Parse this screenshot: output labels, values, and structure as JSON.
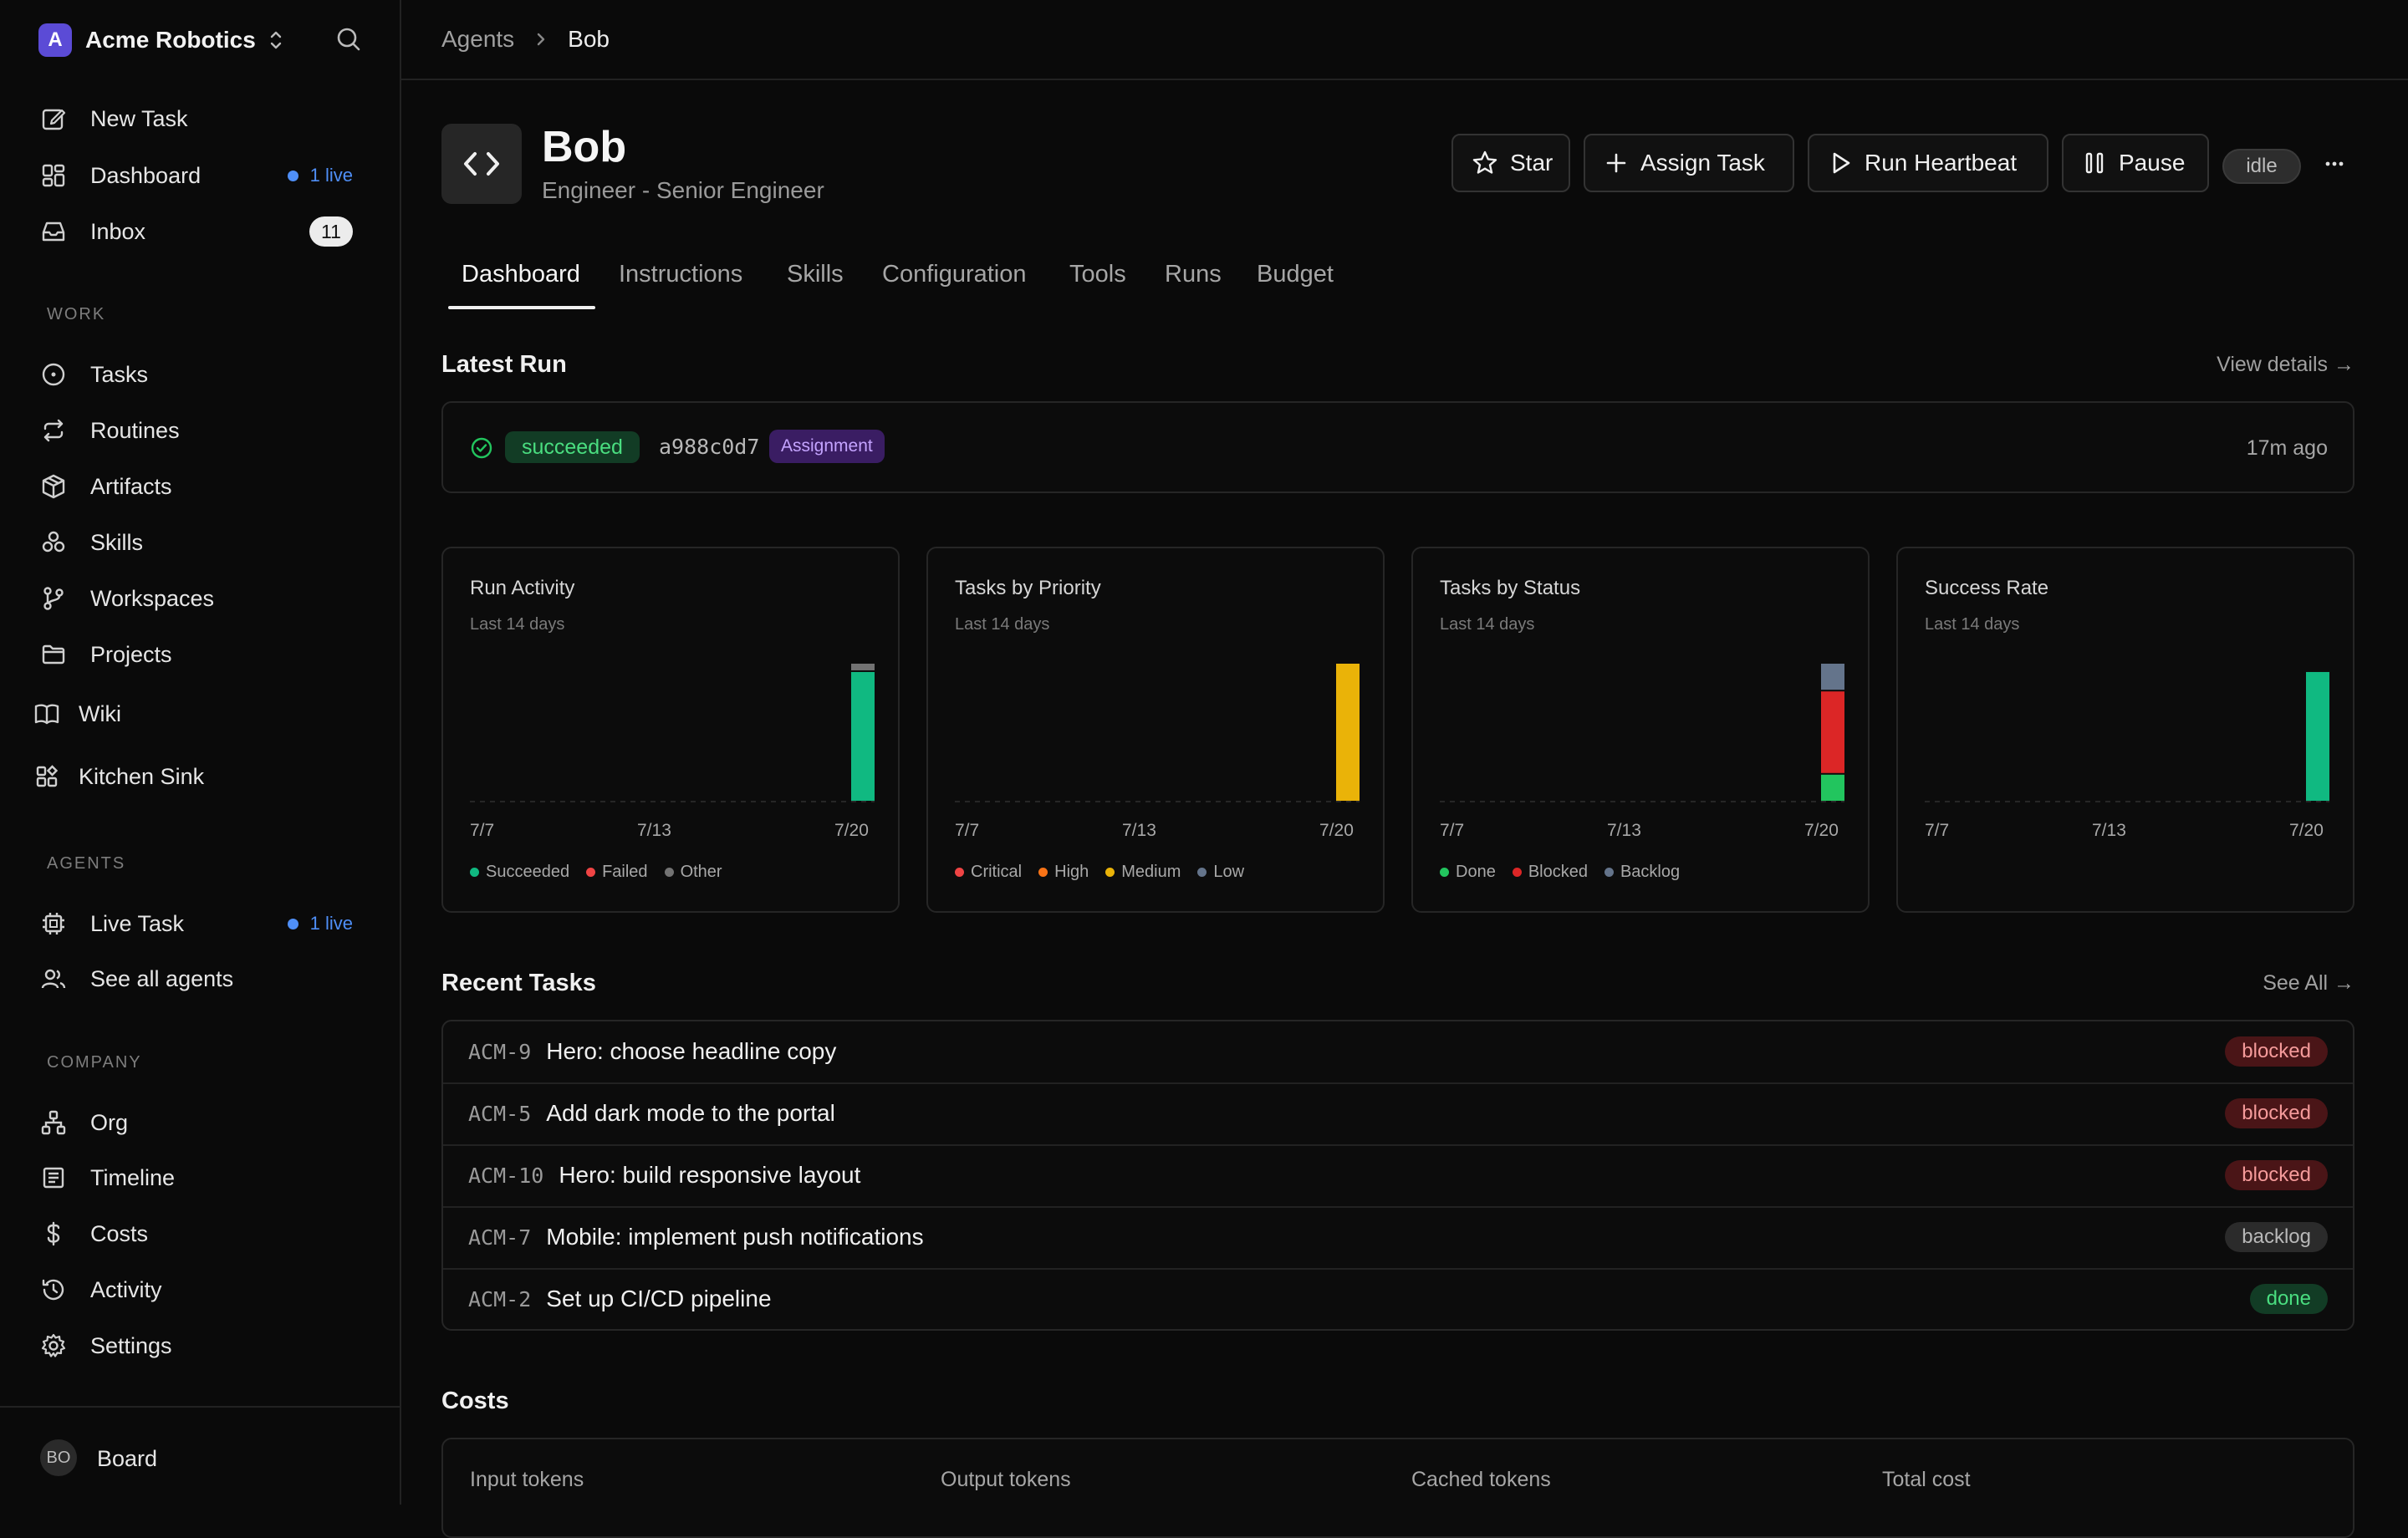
{
  "org": {
    "name": "Acme Robotics",
    "logo_letter": "A"
  },
  "nav": {
    "new_task": "New Task",
    "dashboard": "Dashboard",
    "dashboard_live": "1 live",
    "inbox": "Inbox",
    "inbox_count": "11",
    "work_label": "WORK",
    "tasks": "Tasks",
    "routines": "Routines",
    "artifacts": "Artifacts",
    "skills": "Skills",
    "workspaces": "Workspaces",
    "projects": "Projects",
    "wiki": "Wiki",
    "kitchen_sink": "Kitchen Sink",
    "agents_label": "AGENTS",
    "live_task": "Live Task",
    "live_task_live": "1 live",
    "see_all_agents": "See all agents",
    "company_label": "COMPANY",
    "org": "Org",
    "timeline": "Timeline",
    "costs": "Costs",
    "activity": "Activity",
    "settings": "Settings"
  },
  "footer": {
    "avatar": "BO",
    "name": "Board"
  },
  "breadcrumb": {
    "parent": "Agents",
    "current": "Bob"
  },
  "agent": {
    "name": "Bob",
    "role": "Engineer - Senior Engineer",
    "status": "idle"
  },
  "actions": {
    "star": "Star",
    "assign": "Assign Task",
    "heartbeat": "Run Heartbeat",
    "pause": "Pause",
    "more": "···"
  },
  "tabs": [
    "Dashboard",
    "Instructions",
    "Skills",
    "Configuration",
    "Tools",
    "Runs",
    "Budget"
  ],
  "latest_run": {
    "title": "Latest Run",
    "link": "View details →",
    "status": "succeeded",
    "hash": "a988c0d7",
    "tag": "Assignment",
    "time": "17m ago"
  },
  "colors": {
    "succeeded": "#10b981",
    "failed": "#ef4444",
    "other": "#737373",
    "critical": "#ef4444",
    "high": "#f97316",
    "medium": "#eab308",
    "low": "#64748b",
    "done": "#22c55e",
    "blocked": "#dc2626",
    "backlog": "#64748b"
  },
  "chart_data": [
    {
      "type": "bar",
      "title": "Run Activity",
      "subtitle": "Last 14 days",
      "x": [
        "7/7",
        "7/8",
        "7/9",
        "7/10",
        "7/11",
        "7/12",
        "7/13",
        "7/14",
        "7/15",
        "7/16",
        "7/17",
        "7/18",
        "7/19",
        "7/20"
      ],
      "tick_labels": [
        "7/7",
        "7/13",
        "7/20"
      ],
      "stacked": true,
      "ylim": [
        0,
        1
      ],
      "series": [
        {
          "name": "Succeeded",
          "color": "#10b981",
          "values": [
            0,
            0,
            0,
            0,
            0,
            0,
            0,
            0,
            0,
            0,
            0,
            0,
            0,
            0.94
          ]
        },
        {
          "name": "Failed",
          "color": "#ef4444",
          "values": [
            0,
            0,
            0,
            0,
            0,
            0,
            0,
            0,
            0,
            0,
            0,
            0,
            0,
            0
          ]
        },
        {
          "name": "Other",
          "color": "#737373",
          "values": [
            0,
            0,
            0,
            0,
            0,
            0,
            0,
            0,
            0,
            0,
            0,
            0,
            0,
            0.06
          ]
        }
      ]
    },
    {
      "type": "bar",
      "title": "Tasks by Priority",
      "subtitle": "Last 14 days",
      "x": [
        "7/7",
        "7/8",
        "7/9",
        "7/10",
        "7/11",
        "7/12",
        "7/13",
        "7/14",
        "7/15",
        "7/16",
        "7/17",
        "7/18",
        "7/19",
        "7/20"
      ],
      "tick_labels": [
        "7/7",
        "7/13",
        "7/20"
      ],
      "stacked": true,
      "ylim": [
        0,
        1
      ],
      "series": [
        {
          "name": "Critical",
          "color": "#ef4444",
          "values": [
            0,
            0,
            0,
            0,
            0,
            0,
            0,
            0,
            0,
            0,
            0,
            0,
            0,
            0
          ]
        },
        {
          "name": "High",
          "color": "#f97316",
          "values": [
            0,
            0,
            0,
            0,
            0,
            0,
            0,
            0,
            0,
            0,
            0,
            0,
            0,
            0
          ]
        },
        {
          "name": "Medium",
          "color": "#eab308",
          "values": [
            0,
            0,
            0,
            0,
            0,
            0,
            0,
            0,
            0,
            0,
            0,
            0,
            0,
            1
          ]
        },
        {
          "name": "Low",
          "color": "#64748b",
          "values": [
            0,
            0,
            0,
            0,
            0,
            0,
            0,
            0,
            0,
            0,
            0,
            0,
            0,
            0
          ]
        }
      ]
    },
    {
      "type": "bar",
      "title": "Tasks by Status",
      "subtitle": "Last 14 days",
      "x": [
        "7/7",
        "7/8",
        "7/9",
        "7/10",
        "7/11",
        "7/12",
        "7/13",
        "7/14",
        "7/15",
        "7/16",
        "7/17",
        "7/18",
        "7/19",
        "7/20"
      ],
      "tick_labels": [
        "7/7",
        "7/13",
        "7/20"
      ],
      "stacked": true,
      "ylim": [
        0,
        5
      ],
      "series": [
        {
          "name": "Done",
          "color": "#22c55e",
          "values": [
            0,
            0,
            0,
            0,
            0,
            0,
            0,
            0,
            0,
            0,
            0,
            0,
            0,
            1
          ]
        },
        {
          "name": "Blocked",
          "color": "#dc2626",
          "values": [
            0,
            0,
            0,
            0,
            0,
            0,
            0,
            0,
            0,
            0,
            0,
            0,
            0,
            3
          ]
        },
        {
          "name": "Backlog",
          "color": "#64748b",
          "values": [
            0,
            0,
            0,
            0,
            0,
            0,
            0,
            0,
            0,
            0,
            0,
            0,
            0,
            1
          ]
        }
      ]
    },
    {
      "type": "bar",
      "title": "Success Rate",
      "subtitle": "Last 14 days",
      "x": [
        "7/7",
        "7/8",
        "7/9",
        "7/10",
        "7/11",
        "7/12",
        "7/13",
        "7/14",
        "7/15",
        "7/16",
        "7/17",
        "7/18",
        "7/19",
        "7/20"
      ],
      "tick_labels": [
        "7/7",
        "7/13",
        "7/20"
      ],
      "ylim": [
        0,
        100
      ],
      "series": [
        {
          "name": "",
          "color": "#10b981",
          "values": [
            0,
            0,
            0,
            0,
            0,
            0,
            0,
            0,
            0,
            0,
            0,
            0,
            0,
            94
          ]
        }
      ]
    }
  ],
  "recent_tasks": {
    "title": "Recent Tasks",
    "link": "See All →",
    "rows": [
      {
        "id": "ACM-9",
        "title": "Hero: choose headline copy",
        "status": "blocked"
      },
      {
        "id": "ACM-5",
        "title": "Add dark mode to the portal",
        "status": "blocked"
      },
      {
        "id": "ACM-10",
        "title": "Hero: build responsive layout",
        "status": "blocked"
      },
      {
        "id": "ACM-7",
        "title": "Mobile: implement push notifications",
        "status": "backlog"
      },
      {
        "id": "ACM-2",
        "title": "Set up CI/CD pipeline",
        "status": "done"
      }
    ]
  },
  "costs": {
    "title": "Costs",
    "input": "Input tokens",
    "output": "Output tokens",
    "cached": "Cached tokens",
    "total": "Total cost"
  }
}
